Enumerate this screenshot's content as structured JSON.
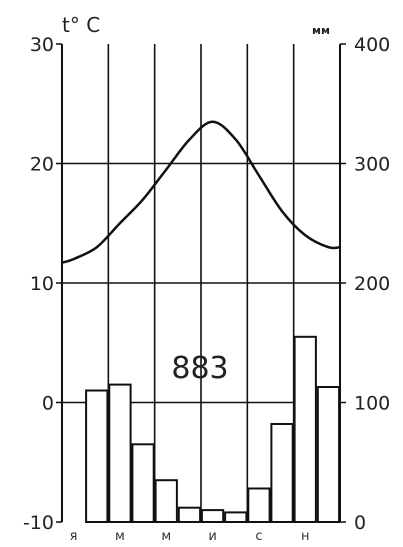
{
  "chart_data": {
    "type": "bar",
    "title": "",
    "annotation": "883",
    "left_axis": {
      "label": "t° C",
      "ticks": [
        "30",
        "20",
        "10",
        "0",
        "-10"
      ],
      "range": [
        -10,
        30
      ]
    },
    "right_axis": {
      "label": "мм",
      "ticks": [
        "400",
        "300",
        "200",
        "100",
        "0"
      ],
      "range": [
        0,
        400
      ]
    },
    "month_labels": [
      "я",
      "м",
      "м",
      "и",
      "с",
      "н"
    ],
    "months": [
      1,
      2,
      3,
      4,
      5,
      6,
      7,
      8,
      9,
      10,
      11,
      12
    ],
    "series": [
      {
        "type": "bar",
        "axis": "right",
        "values": [
          0,
          110,
          115,
          65,
          35,
          12,
          10,
          8,
          28,
          82,
          155,
          113
        ]
      },
      {
        "type": "line",
        "axis": "left",
        "values": [
          12,
          13,
          15,
          17,
          19.5,
          22,
          23.5,
          22,
          19,
          16,
          14,
          13
        ]
      }
    ],
    "grid": true
  }
}
